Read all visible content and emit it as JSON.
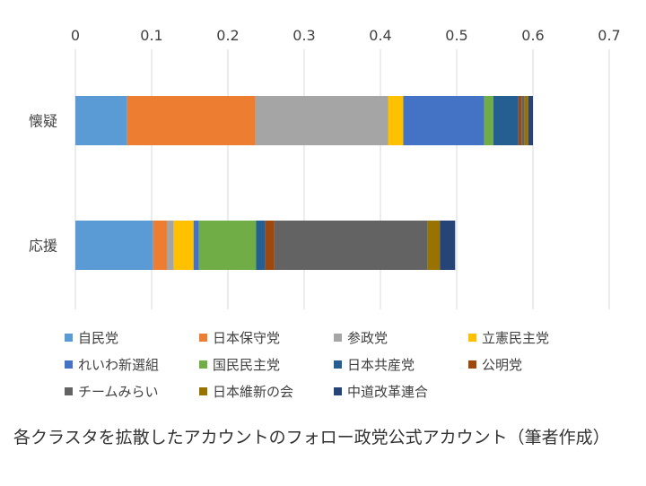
{
  "chart_data": {
    "type": "bar",
    "orientation": "horizontal-stacked",
    "title": "",
    "xlim": [
      0,
      0.7
    ],
    "x_ticks": [
      "0",
      "0.1",
      "0.2",
      "0.3",
      "0.4",
      "0.5",
      "0.6",
      "0.7"
    ],
    "x_tick_values": [
      0,
      0.1,
      0.2,
      0.3,
      0.4,
      0.5,
      0.6,
      0.7
    ],
    "grid": true,
    "legend_placement": "bottom",
    "categories": [
      "懐疑",
      "応援"
    ],
    "series": [
      {
        "name": "自民党",
        "color": "#5b9bd5",
        "values": [
          0.068,
          0.102
        ]
      },
      {
        "name": "日本保守党",
        "color": "#ed7d31",
        "values": [
          0.168,
          0.018
        ]
      },
      {
        "name": "参政党",
        "color": "#a5a5a5",
        "values": [
          0.174,
          0.009
        ]
      },
      {
        "name": "立憲民主党",
        "color": "#ffc000",
        "values": [
          0.02,
          0.026
        ]
      },
      {
        "name": "れいわ新選組",
        "color": "#4472c4",
        "values": [
          0.106,
          0.007
        ]
      },
      {
        "name": "国民民主党",
        "color": "#70ad47",
        "values": [
          0.012,
          0.075
        ]
      },
      {
        "name": "日本共産党",
        "color": "#255e91",
        "values": [
          0.033,
          0.012
        ]
      },
      {
        "name": "公明党",
        "color": "#9e480e",
        "values": [
          0.004,
          0.012
        ]
      },
      {
        "name": "チームみらい",
        "color": "#636363",
        "values": [
          0.004,
          0.201
        ]
      },
      {
        "name": "日本維新の会",
        "color": "#997300",
        "values": [
          0.005,
          0.016
        ]
      },
      {
        "name": "中道改革連合",
        "color": "#264478",
        "values": [
          0.006,
          0.02
        ]
      }
    ]
  },
  "caption": "各クラスタを拡散したアカウントのフォロー政党公式アカウント（筆者作成）"
}
